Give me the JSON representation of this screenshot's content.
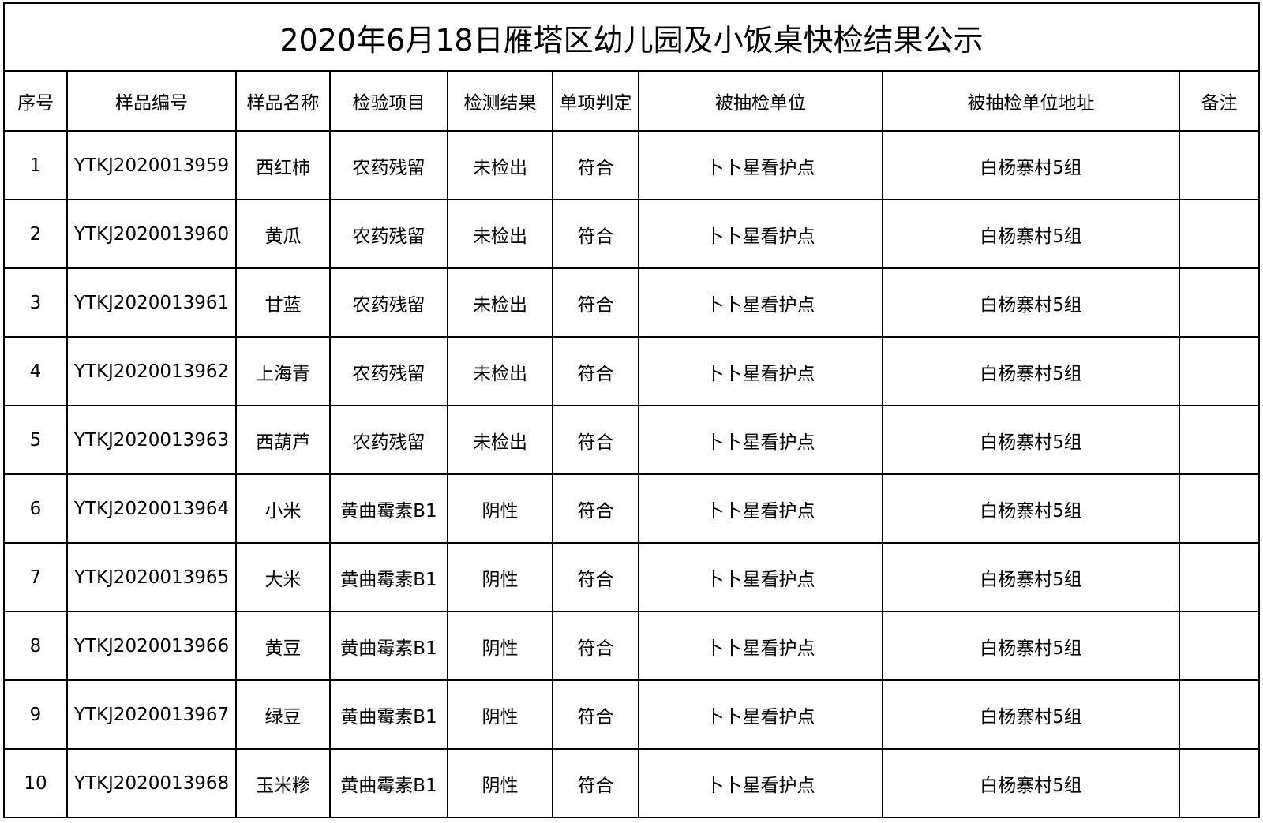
{
  "title": "2020年6月18日雁塔区幼儿园及小饭桌快检结果公示",
  "table": {
    "headers": [
      "序号",
      "样品编号",
      "样品名称",
      "检验项目",
      "检测结果",
      "单项判定",
      "被抽检单位",
      "被抽检单位地址",
      "备注"
    ],
    "rows": [
      [
        "1",
        "YTKJ2020013959",
        "西红柿",
        "农药残留",
        "未检出",
        "符合",
        "卜卜星看护点",
        "白杨寨村5组"
      ],
      [
        "2",
        "YTKJ2020013960",
        "黄瓜",
        "农药残留",
        "未检出",
        "符合",
        "卜卜星看护点",
        "白杨寨村5组"
      ],
      [
        "3",
        "YTKJ2020013961",
        "甘蓝",
        "农药残留",
        "未检出",
        "符合",
        "卜卜星看护点",
        "白杨寨村5组"
      ],
      [
        "4",
        "YTKJ2020013962",
        "上海青",
        "农药残留",
        "未检出",
        "符合",
        "卜卜星看护点",
        "白杨寨村5组"
      ],
      [
        "5",
        "YTKJ2020013963",
        "西葫芦",
        "农药残留",
        "未检出",
        "符合",
        "卜卜星看护点",
        "白杨寨村5组"
      ],
      [
        "6",
        "YTKJ2020013964",
        "小米",
        "黄曲霉素B1",
        "阴性",
        "符合",
        "卜卜星看护点",
        "白杨寨村5组"
      ],
      [
        "7",
        "YTKJ2020013965",
        "大米",
        "黄曲霉素B1",
        "阴性",
        "符合",
        "卜卜星看护点",
        "白杨寨村5组"
      ],
      [
        "8",
        "YTKJ2020013966",
        "黄豆",
        "黄曲霉素B1",
        "阴性",
        "符合",
        "卜卜星看护点",
        "白杨寨村5组"
      ],
      [
        "9",
        "YTKJ2020013967",
        "绿豆",
        "黄曲霉素B1",
        "阴性",
        "符合",
        "卜卜星看护点",
        "白杨寨村5组"
      ],
      [
        "10",
        "YTKJ2020013968",
        "玉米糁",
        "黄曲霉素B1",
        "阴性",
        "符合",
        "卜卜星看护点",
        "白杨寨村5组"
      ]
    ]
  }
}
